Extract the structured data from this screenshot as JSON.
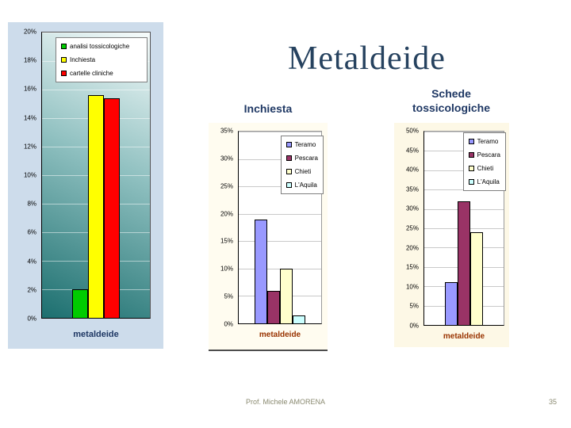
{
  "slide": {
    "title": "Metaldeide",
    "footer": "Prof. Michele AMORENA",
    "page_number": "35"
  },
  "chart_data": [
    {
      "type": "bar",
      "title": "",
      "xlabel": "metaldeide",
      "categories": [
        "metaldeide"
      ],
      "series": [
        {
          "name": "analisi tossicologiche",
          "color": "#00cc00",
          "values": [
            2
          ]
        },
        {
          "name": "Inchiesta",
          "color": "#ffff00",
          "values": [
            15.6
          ]
        },
        {
          "name": "cartelle cliniche",
          "color": "#ff0000",
          "values": [
            15.4
          ]
        }
      ],
      "ylim": [
        0,
        20
      ],
      "ystep": 2,
      "grid": true,
      "legend_position": "top"
    },
    {
      "type": "bar",
      "title": "Inchiesta",
      "xlabel": "metaldeide",
      "categories": [
        "metaldeide"
      ],
      "series": [
        {
          "name": "Teramo",
          "color": "#9999ff",
          "values": [
            19
          ]
        },
        {
          "name": "Pescara",
          "color": "#993366",
          "values": [
            6
          ]
        },
        {
          "name": "Chieti",
          "color": "#ffffcc",
          "values": [
            10
          ]
        },
        {
          "name": "L'Aquila",
          "color": "#ccffff",
          "values": [
            1.5
          ]
        }
      ],
      "ylim": [
        0,
        35
      ],
      "ystep": 5,
      "grid": true,
      "legend_position": "right"
    },
    {
      "type": "bar",
      "title": "Schede tossicologiche",
      "xlabel": "metaldeide",
      "categories": [
        "metaldeide"
      ],
      "series": [
        {
          "name": "Teramo",
          "color": "#9999ff",
          "values": [
            11
          ]
        },
        {
          "name": "Pescara",
          "color": "#993366",
          "values": [
            32
          ]
        },
        {
          "name": "Chieti",
          "color": "#ffffcc",
          "values": [
            24
          ]
        },
        {
          "name": "L'Aquila",
          "color": "#ccffff",
          "values": [
            0
          ]
        }
      ],
      "ylim": [
        0,
        50
      ],
      "ystep": 5,
      "grid": true,
      "legend_position": "right"
    }
  ]
}
